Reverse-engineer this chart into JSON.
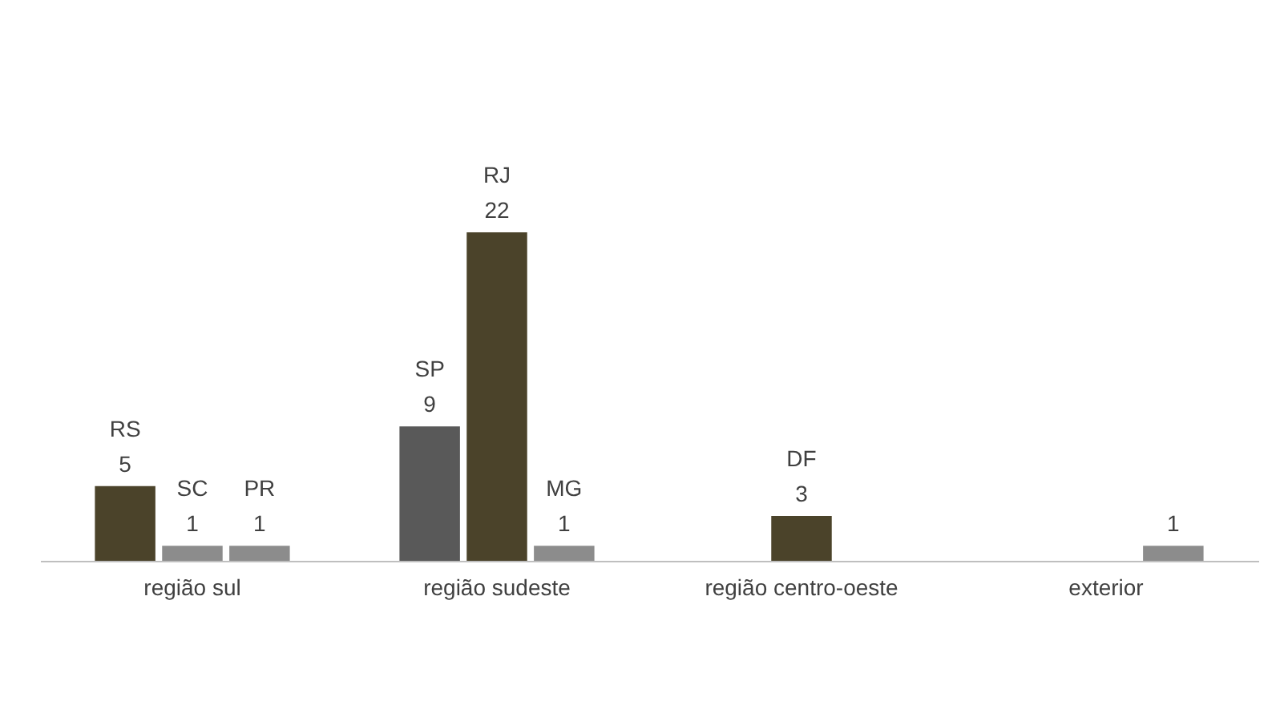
{
  "chart_data": {
    "type": "bar",
    "categories": [
      "região sul",
      "região sudeste",
      "região centro-oeste",
      "exterior"
    ],
    "series": [
      {
        "colors": [
          "#4b432a",
          "#595959",
          null,
          null
        ],
        "values": [
          5,
          9,
          null,
          null
        ],
        "value_labels": [
          "RS\n5",
          "SP\n9",
          null,
          null
        ]
      },
      {
        "colors": [
          "#8c8c8c",
          "#4b432a",
          "#4b432a",
          null
        ],
        "values": [
          1,
          22,
          3,
          null
        ],
        "value_labels": [
          "SC\n1",
          "RJ\n22",
          "DF\n3",
          null
        ]
      },
      {
        "colors": [
          "#8c8c8c",
          "#8c8c8c",
          null,
          "#8c8c8c"
        ],
        "values": [
          1,
          1,
          null,
          1
        ],
        "value_labels": [
          "PR\n1",
          "MG\n1",
          null,
          "1"
        ]
      }
    ],
    "grid": false,
    "tick_labels": "x"
  }
}
